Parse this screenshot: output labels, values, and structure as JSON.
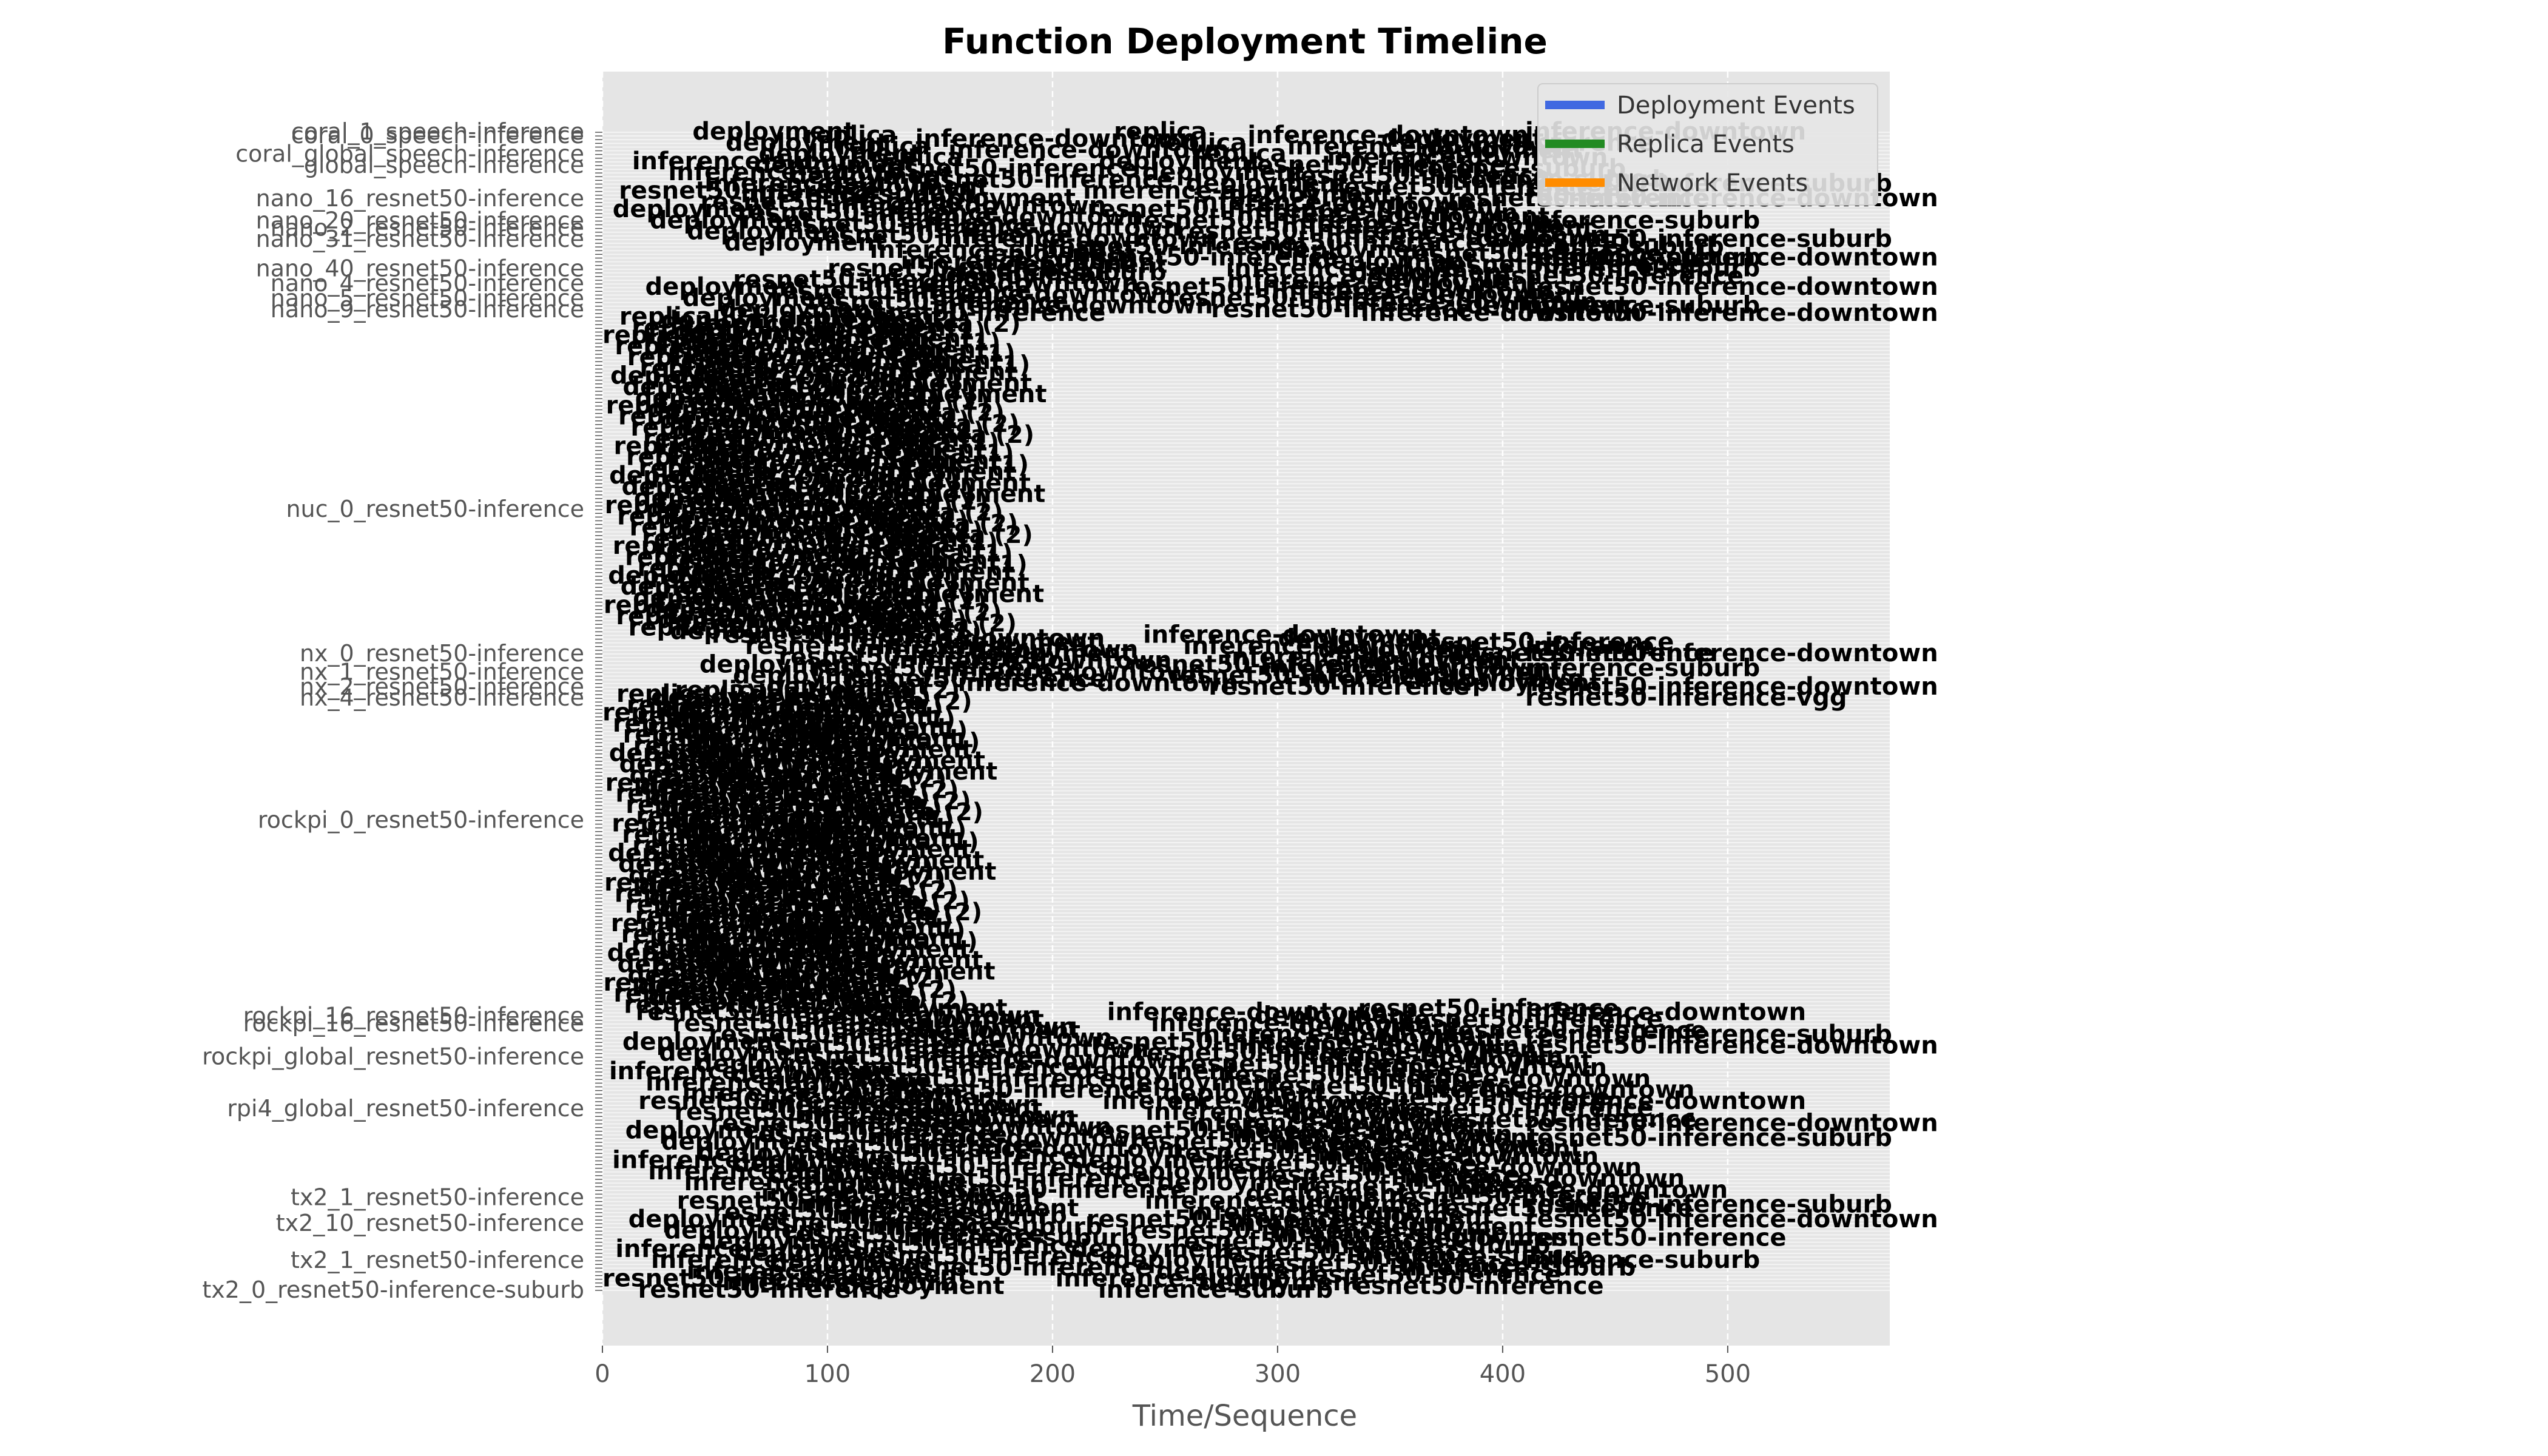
{
  "chart_data": {
    "type": "bar",
    "orientation": "horizontal",
    "title": "Function Deployment Timeline",
    "xlabel": "Time/Sequence",
    "ylabel": "",
    "xlim": [
      0,
      572
    ],
    "x_ticks": [
      "0",
      "100",
      "200",
      "300",
      "400",
      "500"
    ],
    "grid": true,
    "legend_position": "top-right",
    "series": [
      {
        "name": "Deployment Events",
        "color": "#4169e1"
      },
      {
        "name": "Replica Events",
        "color": "#228b22"
      },
      {
        "name": "Network Events",
        "color": "#ff8c00"
      }
    ],
    "row_count": 314,
    "visible_row_labels": [
      {
        "row": 0,
        "label": "coral_1_speech-inference"
      },
      {
        "row": 1,
        "label": "coral_0_speech-inference"
      },
      {
        "row": 6,
        "label": "coral_global_speech-inference"
      },
      {
        "row": 9,
        "label": "global_speech-inference"
      },
      {
        "row": 18,
        "label": "nano_16_resnet50-inference"
      },
      {
        "row": 24,
        "label": "nano_20_resnet50-inference"
      },
      {
        "row": 26,
        "label": "nano_2_resnet50-inference"
      },
      {
        "row": 29,
        "label": "nano_31_resnet50-inference"
      },
      {
        "row": 37,
        "label": "nano_40_resnet50-inference"
      },
      {
        "row": 41,
        "label": "nano_4_resnet50-inference"
      },
      {
        "row": 45,
        "label": "nano_5_resnet50-inference"
      },
      {
        "row": 48,
        "label": "nano_9_resnet50-inference"
      },
      {
        "row": 102,
        "label": "nuc_0_resnet50-inference"
      },
      {
        "row": 141,
        "label": "nx_0_resnet50-inference"
      },
      {
        "row": 146,
        "label": "nx_1_resnet50-inference"
      },
      {
        "row": 150,
        "label": "nx_2_resnet50-inference"
      },
      {
        "row": 153,
        "label": "nx_4_resnet50-inference"
      },
      {
        "row": 186,
        "label": "rockpi_0_resnet50-inference"
      },
      {
        "row": 239,
        "label": "rockpi_16_resnet50-inference"
      },
      {
        "row": 241,
        "label": "rockpi_16_resnet50-inference"
      },
      {
        "row": 250,
        "label": "rockpi_global_resnet50-inference"
      },
      {
        "row": 264,
        "label": "rpi4_global_resnet50-inference"
      },
      {
        "row": 288,
        "label": "tx2_1_resnet50-inference"
      },
      {
        "row": 295,
        "label": "tx2_10_resnet50-inference"
      },
      {
        "row": 305,
        "label": "tx2_1_resnet50-inference"
      },
      {
        "row": 313,
        "label": "tx2_0_resnet50-inference-suburb"
      }
    ],
    "event_groups": [
      {
        "rows": [
          0,
          7
        ],
        "x_start": 40,
        "x_end": 575,
        "deploy": [
          "deployment",
          "replica",
          "inference-downtown"
        ]
      },
      {
        "rows": [
          8,
          17
        ],
        "x_start": 0,
        "x_end": 585,
        "deploy": [
          "deployment",
          "resnet50-inference",
          "inference-suburb"
        ]
      },
      {
        "rows": [
          18,
          30
        ],
        "x_start": 0,
        "x_end": 600,
        "deploy": [
          "deployment",
          "resnet50-inference",
          "inference-downtown"
        ]
      },
      {
        "rows": [
          31,
          38
        ],
        "x_start": 90,
        "x_end": 590,
        "deploy": [
          "deployment",
          "resnet50-inference",
          "inference-suburb"
        ]
      },
      {
        "rows": [
          39,
          49
        ],
        "x_start": 10,
        "x_end": 610,
        "deploy": [
          "deployment",
          "resnet50-inference",
          "inference-downtown"
        ]
      },
      {
        "rows": [
          50,
          135
        ],
        "x_start": 0,
        "x_end": 200,
        "deploy": [
          "deployment",
          "replica (1)",
          "replica (2)"
        ]
      },
      {
        "rows": [
          136,
          150
        ],
        "x_start": 35,
        "x_end": 575,
        "deploy": [
          "deployment",
          "resnet50-inference",
          "inference-downtown"
        ]
      },
      {
        "rows": [
          151,
          236
        ],
        "x_start": 0,
        "x_end": 165,
        "deploy": [
          "deployment",
          "replica (1)",
          "replica (2)"
        ]
      },
      {
        "rows": [
          237,
          260
        ],
        "x_start": 0,
        "x_end": 590,
        "deploy": [
          "deployment",
          "resnet50-inference",
          "inference-downtown"
        ]
      },
      {
        "rows": [
          261,
          286
        ],
        "x_start": 0,
        "x_end": 580,
        "deploy": [
          "deployment",
          "resnet50-inference",
          "inference-downtown"
        ]
      },
      {
        "rows": [
          287,
          313
        ],
        "x_start": 0,
        "x_end": 575,
        "deploy": [
          "deployment",
          "resnet50-inference",
          "inference-suburb"
        ]
      }
    ],
    "right_side_annotations": [
      {
        "row": 0,
        "text": "inference-downtown"
      },
      {
        "row": 3,
        "text": "inference"
      },
      {
        "row": 14,
        "text": "resnet50-inference-suburb"
      },
      {
        "row": 18,
        "text": "resnet50-inference-downtown"
      },
      {
        "row": 24,
        "text": "inference-suburb"
      },
      {
        "row": 29,
        "text": "resnet50-inference-suburb"
      },
      {
        "row": 34,
        "text": "resnet50-inference-downtown"
      },
      {
        "row": 37,
        "text": "inference-suburb"
      },
      {
        "row": 42,
        "text": "resnet50-inference-downtown"
      },
      {
        "row": 47,
        "text": "inference-suburb"
      },
      {
        "row": 49,
        "text": "resnet50-inference-downtown"
      },
      {
        "row": 139,
        "text": "inference"
      },
      {
        "row": 141,
        "text": "resnet50-inference-downtown"
      },
      {
        "row": 145,
        "text": "inference-suburb"
      },
      {
        "row": 150,
        "text": "resnet50-inference-downtown"
      },
      {
        "row": 153,
        "text": "resnet50-inference-vgg"
      },
      {
        "row": 238,
        "text": "inference-downtown"
      },
      {
        "row": 244,
        "text": "resnet50-inference-suburb"
      },
      {
        "row": 247,
        "text": "resnet50-inference-downtown"
      },
      {
        "row": 262,
        "text": "inference-downtown"
      },
      {
        "row": 268,
        "text": "resnet50-inference-downtown"
      },
      {
        "row": 272,
        "text": "resnet50-inference-suburb"
      },
      {
        "row": 290,
        "text": "resnet50-inference-suburb"
      },
      {
        "row": 294,
        "text": "resnet50-inference-downtown"
      },
      {
        "row": 299,
        "text": "resnet50-inference"
      },
      {
        "row": 305,
        "text": "inference-suburb"
      }
    ]
  }
}
